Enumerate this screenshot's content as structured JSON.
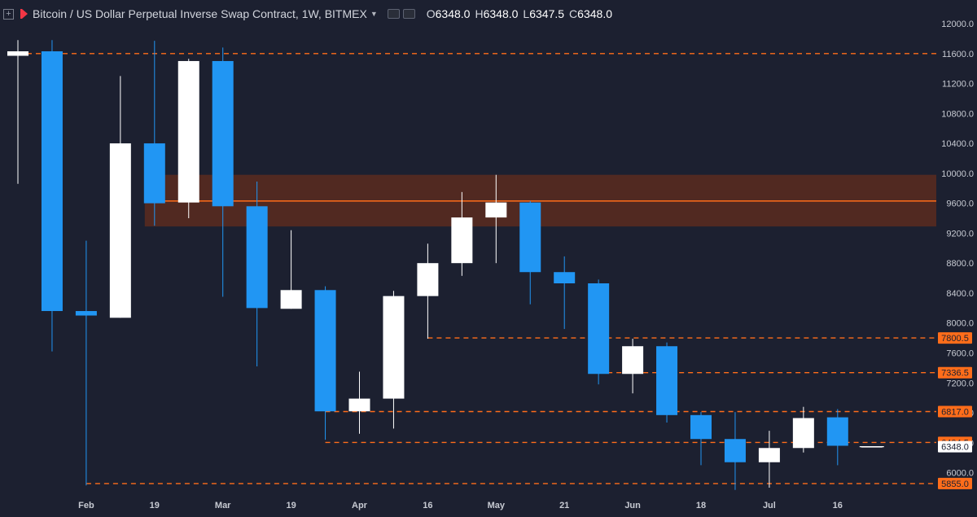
{
  "header": {
    "title": "Bitcoin / US Dollar Perpetual Inverse Swap Contract, 1W, BITMEX",
    "ohlc": [
      {
        "key": "O",
        "value": "6348.0"
      },
      {
        "key": "H",
        "value": "6348.0"
      },
      {
        "key": "L",
        "value": "6347.5"
      },
      {
        "key": "C",
        "value": "6348.0"
      }
    ]
  },
  "colors": {
    "background": "#1c2030",
    "up": "#ffffff",
    "down": "#2196f3",
    "level": "#ff6d1a",
    "zone": "#5a2b1e"
  },
  "chart_data": {
    "type": "candlestick",
    "timeframe": "1W",
    "ylim": [
      5650,
      12200
    ],
    "y_ticks": [
      6000,
      6400,
      6800,
      7200,
      7600,
      8000,
      8400,
      8800,
      9200,
      9600,
      10000,
      10400,
      10800,
      11200,
      11600,
      12000
    ],
    "x_labels": [
      "Feb",
      "19",
      "Mar",
      "19",
      "Apr",
      "16",
      "May",
      "21",
      "Jun",
      "18",
      "Jul",
      "16"
    ],
    "candles": [
      {
        "o": 11570,
        "h": 11780,
        "l": 9860,
        "c": 11630
      },
      {
        "o": 11630,
        "h": 11780,
        "l": 7620,
        "c": 8160
      },
      {
        "o": 8160,
        "h": 9100,
        "l": 5830,
        "c": 8100
      },
      {
        "o": 8070,
        "h": 11300,
        "l": 8070,
        "c": 10400
      },
      {
        "o": 10400,
        "h": 11770,
        "l": 9300,
        "c": 9600
      },
      {
        "o": 9610,
        "h": 11530,
        "l": 9400,
        "c": 11500
      },
      {
        "o": 11500,
        "h": 11680,
        "l": 8350,
        "c": 9560
      },
      {
        "o": 9560,
        "h": 9890,
        "l": 7420,
        "c": 8200
      },
      {
        "o": 8190,
        "h": 9240,
        "l": 8190,
        "c": 8440
      },
      {
        "o": 8440,
        "h": 8490,
        "l": 6440,
        "c": 6820
      },
      {
        "o": 6820,
        "h": 7350,
        "l": 6520,
        "c": 6990
      },
      {
        "o": 6990,
        "h": 8430,
        "l": 6590,
        "c": 8360
      },
      {
        "o": 8360,
        "h": 9060,
        "l": 7790,
        "c": 8800
      },
      {
        "o": 8800,
        "h": 9750,
        "l": 8630,
        "c": 9410
      },
      {
        "o": 9410,
        "h": 9980,
        "l": 8800,
        "c": 9610
      },
      {
        "o": 9610,
        "h": 9630,
        "l": 8250,
        "c": 8680
      },
      {
        "o": 8680,
        "h": 8890,
        "l": 7920,
        "c": 8530
      },
      {
        "o": 8530,
        "h": 8580,
        "l": 7180,
        "c": 7320
      },
      {
        "o": 7320,
        "h": 7790,
        "l": 7060,
        "c": 7690
      },
      {
        "o": 7690,
        "h": 7740,
        "l": 6670,
        "c": 6770
      },
      {
        "o": 6770,
        "h": 6810,
        "l": 6100,
        "c": 6450
      },
      {
        "o": 6450,
        "h": 6810,
        "l": 5770,
        "c": 6140
      },
      {
        "o": 6140,
        "h": 6560,
        "l": 5800,
        "c": 6330
      },
      {
        "o": 6330,
        "h": 6880,
        "l": 6270,
        "c": 6730
      },
      {
        "o": 6740,
        "h": 6850,
        "l": 6100,
        "c": 6360
      },
      {
        "o": 6348,
        "h": 6348,
        "l": 6347.5,
        "c": 6348
      }
    ],
    "levels": [
      {
        "value": 11600,
        "from_candle": 0,
        "label": ""
      },
      {
        "value": 7800.5,
        "from_candle": 12,
        "label": "7800.5"
      },
      {
        "value": 7336.5,
        "from_candle": 17,
        "label": "7336.5"
      },
      {
        "value": 6817.0,
        "from_candle": 9,
        "label": "6817.0"
      },
      {
        "value": 6404.5,
        "from_candle": 9,
        "label": "6404.5"
      },
      {
        "value": 5855.0,
        "from_candle": 2,
        "label": "5855.0"
      }
    ],
    "zone": {
      "low": 9290,
      "high": 9980,
      "mid": 9630,
      "from_candle": 4
    },
    "last_price": {
      "value": 6348,
      "label": "6348.0"
    }
  }
}
